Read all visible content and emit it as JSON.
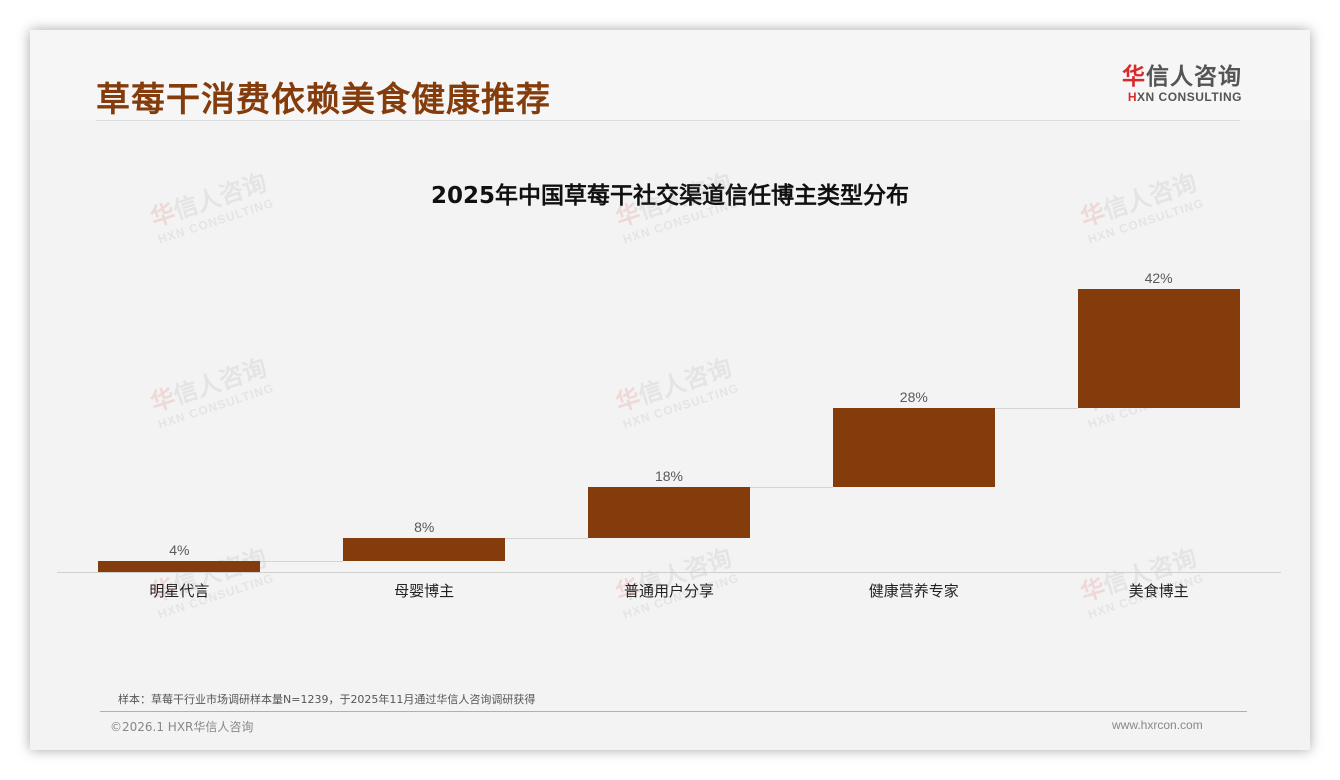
{
  "header": {
    "title": "草莓干消费依赖美食健康推荐",
    "logo_cn_first": "华",
    "logo_cn_rest": "信人咨询",
    "logo_en_first": "H",
    "logo_en_rest": "XN CONSULTING"
  },
  "watermark": {
    "cn_first": "华",
    "cn_rest": "信人咨询",
    "en": "HXN CONSULTING"
  },
  "colors": {
    "title": "#843c0c",
    "bar": "#843c0c",
    "logo_accent": "#d62b2b"
  },
  "chart_data": {
    "type": "bar",
    "subtype": "waterfall",
    "title": "2025年中国草莓干社交渠道信任博主类型分布",
    "categories": [
      "明星代言",
      "母婴博主",
      "普通用户分享",
      "健康营养专家",
      "美食博主"
    ],
    "values": [
      4,
      8,
      18,
      28,
      42
    ],
    "value_labels": [
      "4%",
      "8%",
      "18%",
      "28%",
      "42%"
    ],
    "unit": "%",
    "xlabel": "",
    "ylabel": "",
    "ylim": [
      0,
      100
    ],
    "grid": false,
    "legend": null
  },
  "footer": {
    "note": "样本：草莓干行业市场调研样本量N=1239，于2025年11月通过华信人咨询调研获得",
    "copyright": "©2026.1 HXR华信人咨询",
    "website": "www.hxrcon.com"
  }
}
